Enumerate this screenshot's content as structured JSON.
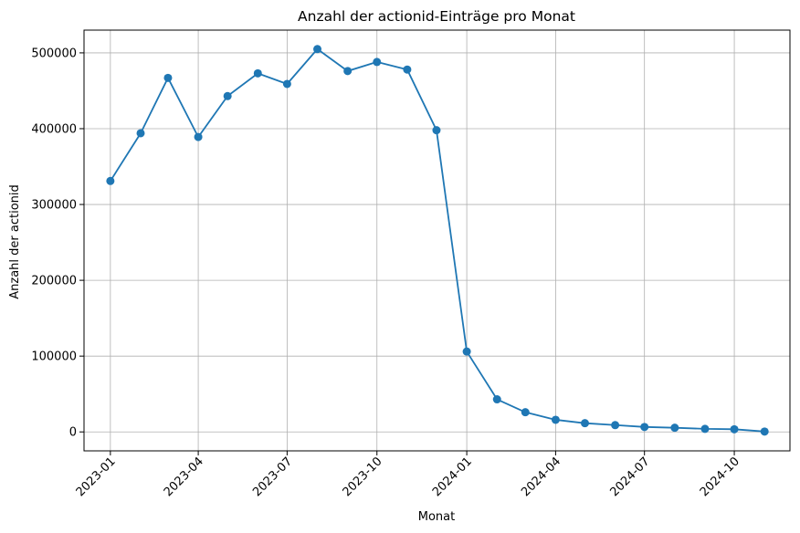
{
  "chart_data": {
    "type": "line",
    "title": "Anzahl der actionid-Einträge pro Monat",
    "xlabel": "Monat",
    "ylabel": "Anzahl der actionid",
    "x": [
      "2023-01",
      "2023-02",
      "2023-03",
      "2023-04",
      "2023-05",
      "2023-06",
      "2023-07",
      "2023-08",
      "2023-09",
      "2023-10",
      "2023-11",
      "2023-12",
      "2024-01",
      "2024-02",
      "2024-03",
      "2024-04",
      "2024-05",
      "2024-06",
      "2024-07",
      "2024-08",
      "2024-09",
      "2024-10",
      "2024-11"
    ],
    "series": [
      {
        "values": [
          331000,
          394000,
          467000,
          389000,
          443000,
          473000,
          459000,
          505000,
          476000,
          488000,
          478000,
          398000,
          106000,
          43000,
          26000,
          16000,
          11500,
          9000,
          6500,
          5500,
          4000,
          3500,
          500
        ]
      }
    ],
    "x_ticks": [
      "2023-01",
      "2023-04",
      "2023-07",
      "2023-10",
      "2024-01",
      "2024-04",
      "2024-07",
      "2024-10"
    ],
    "y_ticks": [
      0,
      100000,
      200000,
      300000,
      400000,
      500000
    ],
    "y_tick_labels": [
      "0",
      "100000",
      "200000",
      "300000",
      "400000",
      "500000"
    ],
    "xlim": [
      "2022-12-05",
      "2024-11-27"
    ],
    "ylim": [
      -25000,
      530000
    ],
    "grid": true,
    "color": "#1f77b4"
  }
}
